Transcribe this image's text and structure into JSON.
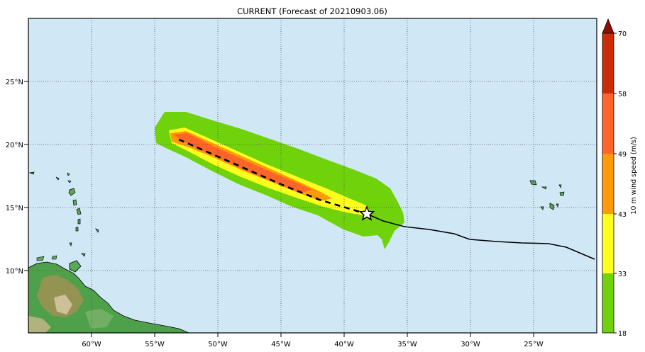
{
  "title": "CURRENT (Forecast of 20210903.06)",
  "colorbar": {
    "label": "10 m wind speed (m/s)",
    "ticks": [
      "18",
      "33",
      "43",
      "49",
      "58",
      "70"
    ],
    "bands": [
      {
        "from": 18,
        "to": 33,
        "color": "#6fd20a"
      },
      {
        "from": 33,
        "to": 43,
        "color": "#ffff1e"
      },
      {
        "from": 43,
        "to": 49,
        "color": "#ff9a0a"
      },
      {
        "from": 49,
        "to": 58,
        "color": "#ff6428"
      },
      {
        "from": 58,
        "to": 70,
        "color": "#cc2c05"
      }
    ],
    "extend_color": "#8c1005"
  },
  "map": {
    "ocean_color": "#d0e7f5",
    "lon_labels": [
      "60°W",
      "55°W",
      "50°W",
      "45°W",
      "40°W",
      "35°W",
      "30°W",
      "25°W"
    ],
    "lat_labels": [
      "25°N",
      "20°N",
      "15°N",
      "10°N"
    ],
    "lon_range": [
      -65,
      -20
    ],
    "lat_range": [
      5,
      30
    ],
    "storm_marker": "star-icon",
    "forecast_track_style": "dashed",
    "past_track_style": "solid"
  }
}
